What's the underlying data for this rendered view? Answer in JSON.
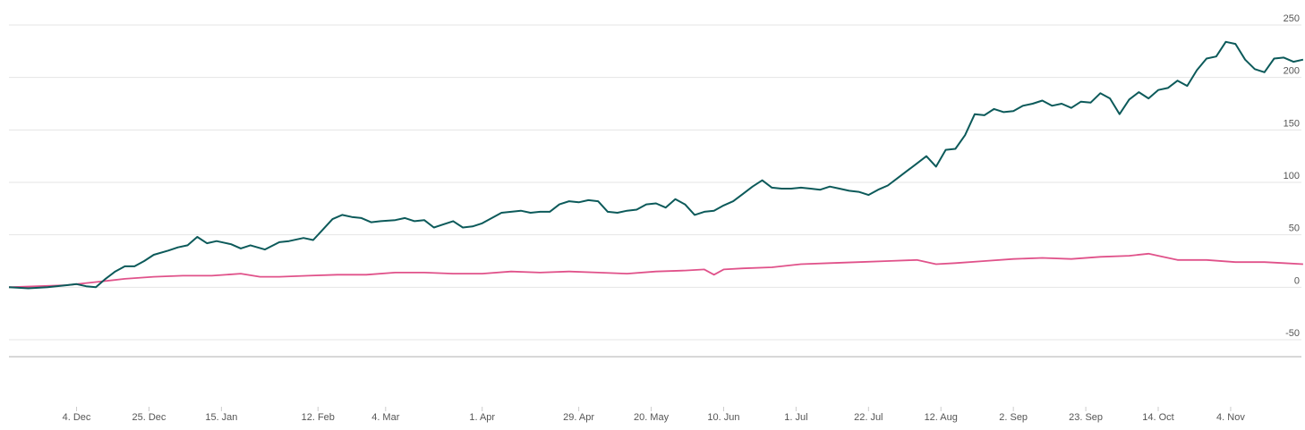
{
  "colors": {
    "series_a": "#0c5a5a",
    "series_b": "#e0528a",
    "grid": "#e4e4e4",
    "separator": "#cccccc",
    "tick_text": "#555555"
  },
  "chart_data": {
    "type": "line",
    "title": "",
    "xlabel": "",
    "ylabel": "",
    "ylim": [
      -50,
      250
    ],
    "y_ticks": [
      250,
      200,
      150,
      100,
      50,
      0,
      -50
    ],
    "y_axis_position": "right",
    "grid": true,
    "legend": "none",
    "x_tick_labels": [
      "4. Dec",
      "25. Dec",
      "15. Jan",
      "12. Feb",
      "4. Mar",
      "1. Apr",
      "29. Apr",
      "20. May",
      "10. Jun",
      "1. Jul",
      "22. Jul",
      "12. Aug",
      "2. Sep",
      "23. Sep",
      "14. Oct",
      "4. Nov"
    ],
    "x_tick_index": [
      14,
      29,
      44,
      64,
      78,
      98,
      118,
      133,
      148,
      163,
      178,
      193,
      208,
      223,
      238,
      253
    ],
    "x_count": 258,
    "series": [
      {
        "values": [
          {
            "i": 0,
            "y": 0
          },
          {
            "i": 4,
            "y": -1
          },
          {
            "i": 8,
            "y": 0
          },
          {
            "i": 12,
            "y": 2
          },
          {
            "i": 14,
            "y": 3
          },
          {
            "i": 16,
            "y": 1
          },
          {
            "i": 18,
            "y": 0
          },
          {
            "i": 20,
            "y": 8
          },
          {
            "i": 22,
            "y": 15
          },
          {
            "i": 24,
            "y": 20
          },
          {
            "i": 26,
            "y": 20
          },
          {
            "i": 28,
            "y": 25
          },
          {
            "i": 30,
            "y": 31
          },
          {
            "i": 33,
            "y": 35
          },
          {
            "i": 35,
            "y": 38
          },
          {
            "i": 37,
            "y": 40
          },
          {
            "i": 39,
            "y": 48
          },
          {
            "i": 41,
            "y": 42
          },
          {
            "i": 43,
            "y": 44
          },
          {
            "i": 46,
            "y": 41
          },
          {
            "i": 48,
            "y": 37
          },
          {
            "i": 50,
            "y": 40
          },
          {
            "i": 53,
            "y": 36
          },
          {
            "i": 56,
            "y": 43
          },
          {
            "i": 58,
            "y": 44
          },
          {
            "i": 61,
            "y": 47
          },
          {
            "i": 63,
            "y": 45
          },
          {
            "i": 65,
            "y": 55
          },
          {
            "i": 67,
            "y": 65
          },
          {
            "i": 69,
            "y": 69
          },
          {
            "i": 71,
            "y": 67
          },
          {
            "i": 73,
            "y": 66
          },
          {
            "i": 75,
            "y": 62
          },
          {
            "i": 77,
            "y": 63
          },
          {
            "i": 80,
            "y": 64
          },
          {
            "i": 82,
            "y": 66
          },
          {
            "i": 84,
            "y": 63
          },
          {
            "i": 86,
            "y": 64
          },
          {
            "i": 88,
            "y": 57
          },
          {
            "i": 90,
            "y": 60
          },
          {
            "i": 92,
            "y": 63
          },
          {
            "i": 94,
            "y": 57
          },
          {
            "i": 96,
            "y": 58
          },
          {
            "i": 98,
            "y": 61
          },
          {
            "i": 100,
            "y": 66
          },
          {
            "i": 102,
            "y": 71
          },
          {
            "i": 104,
            "y": 72
          },
          {
            "i": 106,
            "y": 73
          },
          {
            "i": 108,
            "y": 71
          },
          {
            "i": 110,
            "y": 72
          },
          {
            "i": 112,
            "y": 72
          },
          {
            "i": 114,
            "y": 79
          },
          {
            "i": 116,
            "y": 82
          },
          {
            "i": 118,
            "y": 81
          },
          {
            "i": 120,
            "y": 83
          },
          {
            "i": 122,
            "y": 82
          },
          {
            "i": 124,
            "y": 72
          },
          {
            "i": 126,
            "y": 71
          },
          {
            "i": 128,
            "y": 73
          },
          {
            "i": 130,
            "y": 74
          },
          {
            "i": 132,
            "y": 79
          },
          {
            "i": 134,
            "y": 80
          },
          {
            "i": 136,
            "y": 76
          },
          {
            "i": 138,
            "y": 84
          },
          {
            "i": 140,
            "y": 79
          },
          {
            "i": 142,
            "y": 69
          },
          {
            "i": 144,
            "y": 72
          },
          {
            "i": 146,
            "y": 73
          },
          {
            "i": 148,
            "y": 78
          },
          {
            "i": 150,
            "y": 82
          },
          {
            "i": 152,
            "y": 89
          },
          {
            "i": 154,
            "y": 96
          },
          {
            "i": 156,
            "y": 102
          },
          {
            "i": 158,
            "y": 95
          },
          {
            "i": 160,
            "y": 94
          },
          {
            "i": 162,
            "y": 94
          },
          {
            "i": 164,
            "y": 95
          },
          {
            "i": 166,
            "y": 94
          },
          {
            "i": 168,
            "y": 93
          },
          {
            "i": 170,
            "y": 96
          },
          {
            "i": 172,
            "y": 94
          },
          {
            "i": 174,
            "y": 92
          },
          {
            "i": 176,
            "y": 91
          },
          {
            "i": 178,
            "y": 88
          },
          {
            "i": 180,
            "y": 93
          },
          {
            "i": 182,
            "y": 97
          },
          {
            "i": 184,
            "y": 104
          },
          {
            "i": 186,
            "y": 111
          },
          {
            "i": 188,
            "y": 118
          },
          {
            "i": 190,
            "y": 125
          },
          {
            "i": 192,
            "y": 115
          },
          {
            "i": 194,
            "y": 131
          },
          {
            "i": 196,
            "y": 132
          },
          {
            "i": 198,
            "y": 145
          },
          {
            "i": 200,
            "y": 165
          },
          {
            "i": 202,
            "y": 164
          },
          {
            "i": 204,
            "y": 170
          },
          {
            "i": 206,
            "y": 167
          },
          {
            "i": 208,
            "y": 168
          },
          {
            "i": 210,
            "y": 173
          },
          {
            "i": 212,
            "y": 175
          },
          {
            "i": 214,
            "y": 178
          },
          {
            "i": 216,
            "y": 173
          },
          {
            "i": 218,
            "y": 175
          },
          {
            "i": 220,
            "y": 171
          },
          {
            "i": 222,
            "y": 177
          },
          {
            "i": 224,
            "y": 176
          },
          {
            "i": 226,
            "y": 185
          },
          {
            "i": 228,
            "y": 180
          },
          {
            "i": 230,
            "y": 165
          },
          {
            "i": 232,
            "y": 179
          },
          {
            "i": 234,
            "y": 186
          },
          {
            "i": 236,
            "y": 180
          },
          {
            "i": 238,
            "y": 188
          },
          {
            "i": 240,
            "y": 190
          },
          {
            "i": 242,
            "y": 197
          },
          {
            "i": 244,
            "y": 192
          },
          {
            "i": 246,
            "y": 207
          },
          {
            "i": 248,
            "y": 218
          },
          {
            "i": 250,
            "y": 220
          },
          {
            "i": 252,
            "y": 234
          },
          {
            "i": 254,
            "y": 232
          },
          {
            "i": 256,
            "y": 217
          },
          {
            "i": 258,
            "y": 208
          },
          {
            "i": 260,
            "y": 205
          },
          {
            "i": 262,
            "y": 218
          },
          {
            "i": 264,
            "y": 219
          },
          {
            "i": 266,
            "y": 215
          },
          {
            "i": 268,
            "y": 217
          }
        ]
      },
      {
        "values": [
          {
            "i": 0,
            "y": 0
          },
          {
            "i": 6,
            "y": 1
          },
          {
            "i": 12,
            "y": 2
          },
          {
            "i": 18,
            "y": 5
          },
          {
            "i": 24,
            "y": 8
          },
          {
            "i": 30,
            "y": 10
          },
          {
            "i": 36,
            "y": 11
          },
          {
            "i": 42,
            "y": 11
          },
          {
            "i": 48,
            "y": 13
          },
          {
            "i": 52,
            "y": 10
          },
          {
            "i": 56,
            "y": 10
          },
          {
            "i": 62,
            "y": 11
          },
          {
            "i": 68,
            "y": 12
          },
          {
            "i": 74,
            "y": 12
          },
          {
            "i": 80,
            "y": 14
          },
          {
            "i": 86,
            "y": 14
          },
          {
            "i": 92,
            "y": 13
          },
          {
            "i": 98,
            "y": 13
          },
          {
            "i": 104,
            "y": 15
          },
          {
            "i": 110,
            "y": 14
          },
          {
            "i": 116,
            "y": 15
          },
          {
            "i": 122,
            "y": 14
          },
          {
            "i": 128,
            "y": 13
          },
          {
            "i": 134,
            "y": 15
          },
          {
            "i": 140,
            "y": 16
          },
          {
            "i": 144,
            "y": 17
          },
          {
            "i": 146,
            "y": 12
          },
          {
            "i": 148,
            "y": 17
          },
          {
            "i": 152,
            "y": 18
          },
          {
            "i": 158,
            "y": 19
          },
          {
            "i": 164,
            "y": 22
          },
          {
            "i": 170,
            "y": 23
          },
          {
            "i": 176,
            "y": 24
          },
          {
            "i": 182,
            "y": 25
          },
          {
            "i": 188,
            "y": 26
          },
          {
            "i": 192,
            "y": 22
          },
          {
            "i": 196,
            "y": 23
          },
          {
            "i": 202,
            "y": 25
          },
          {
            "i": 208,
            "y": 27
          },
          {
            "i": 214,
            "y": 28
          },
          {
            "i": 220,
            "y": 27
          },
          {
            "i": 226,
            "y": 29
          },
          {
            "i": 232,
            "y": 30
          },
          {
            "i": 236,
            "y": 32
          },
          {
            "i": 238,
            "y": 30
          },
          {
            "i": 242,
            "y": 26
          },
          {
            "i": 248,
            "y": 26
          },
          {
            "i": 254,
            "y": 24
          },
          {
            "i": 260,
            "y": 24
          },
          {
            "i": 264,
            "y": 23
          },
          {
            "i": 268,
            "y": 22
          }
        ]
      }
    ]
  }
}
